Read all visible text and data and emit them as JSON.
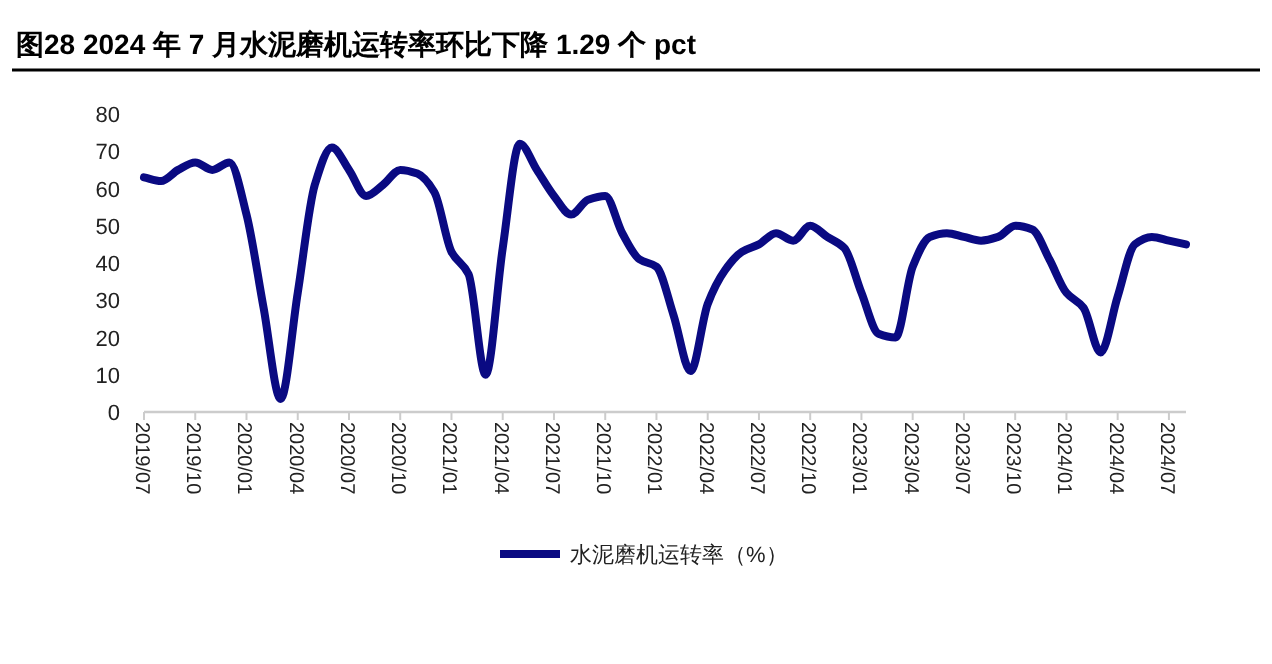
{
  "chart_data": {
    "type": "line",
    "title": "图28 2024 年 7 月水泥磨机运转率环比下降 1.29 个 pct",
    "x": [
      "2019-07",
      "2019-08",
      "2019-09",
      "2019-10",
      "2019-11",
      "2019-12",
      "2020-01",
      "2020-02",
      "2020-03",
      "2020-04",
      "2020-05",
      "2020-06",
      "2020-07",
      "2020-08",
      "2020-09",
      "2020-10",
      "2020-11",
      "2020-12",
      "2021-01",
      "2021-02",
      "2021-03",
      "2021-04",
      "2021-05",
      "2021-06",
      "2021-07",
      "2021-08",
      "2021-09",
      "2021-10",
      "2021-11",
      "2021-12",
      "2022-01",
      "2022-02",
      "2022-03",
      "2022-04",
      "2022-05",
      "2022-06",
      "2022-07",
      "2022-08",
      "2022-09",
      "2022-10",
      "2022-11",
      "2022-12",
      "2023-01",
      "2023-02",
      "2023-03",
      "2023-04",
      "2023-05",
      "2023-06",
      "2023-07",
      "2023-08",
      "2023-09",
      "2023-10",
      "2023-11",
      "2023-12",
      "2024-01",
      "2024-02",
      "2024-03",
      "2024-04",
      "2024-05",
      "2024-06",
      "2024-07",
      "2024-08"
    ],
    "series": [
      {
        "name": "水泥磨机运转率（%）",
        "color": "#0a0a82",
        "values": [
          63,
          62,
          65,
          67,
          65,
          67,
          53,
          28,
          3.5,
          32,
          61,
          71,
          65,
          58,
          61,
          65,
          64,
          59,
          43,
          37,
          10,
          44,
          72,
          65,
          58,
          53,
          57,
          58,
          48,
          41,
          39,
          26,
          11,
          29,
          38,
          43,
          45,
          48,
          46,
          50,
          47,
          44,
          32,
          21,
          20,
          39,
          47,
          48,
          47,
          46,
          47,
          50,
          49,
          41,
          32,
          28,
          16,
          31,
          45,
          47,
          46,
          45
        ]
      }
    ],
    "xlim": [
      "2019-07",
      "2024-08"
    ],
    "xticks": [
      {
        "value": "2019-07",
        "label": "2019/07"
      },
      {
        "value": "2019-10",
        "label": "2019/10"
      },
      {
        "value": "2020-01",
        "label": "2020/01"
      },
      {
        "value": "2020-04",
        "label": "2020/04"
      },
      {
        "value": "2020-07",
        "label": "2020/07"
      },
      {
        "value": "2020-10",
        "label": "2020/10"
      },
      {
        "value": "2021-01",
        "label": "2021/01"
      },
      {
        "value": "2021-04",
        "label": "2021/04"
      },
      {
        "value": "2021-07",
        "label": "2021/07"
      },
      {
        "value": "2021-10",
        "label": "2021/10"
      },
      {
        "value": "2022-01",
        "label": "2022/01"
      },
      {
        "value": "2022-04",
        "label": "2022/04"
      },
      {
        "value": "2022-07",
        "label": "2022/07"
      },
      {
        "value": "2022-10",
        "label": "2022/10"
      },
      {
        "value": "2023-01",
        "label": "2023/01"
      },
      {
        "value": "2023-04",
        "label": "2023/04"
      },
      {
        "value": "2023-07",
        "label": "2023/07"
      },
      {
        "value": "2023-10",
        "label": "2023/10"
      },
      {
        "value": "2024-01",
        "label": "2024/01"
      },
      {
        "value": "2024-04",
        "label": "2024/04"
      },
      {
        "value": "2024-07",
        "label": "2024/07"
      }
    ],
    "ylim": [
      0,
      80
    ],
    "yticks": [
      0,
      10,
      20,
      30,
      40,
      50,
      60,
      70,
      80
    ],
    "grid": false,
    "legend": "bottom",
    "marker": "none",
    "line_style": "solid"
  }
}
